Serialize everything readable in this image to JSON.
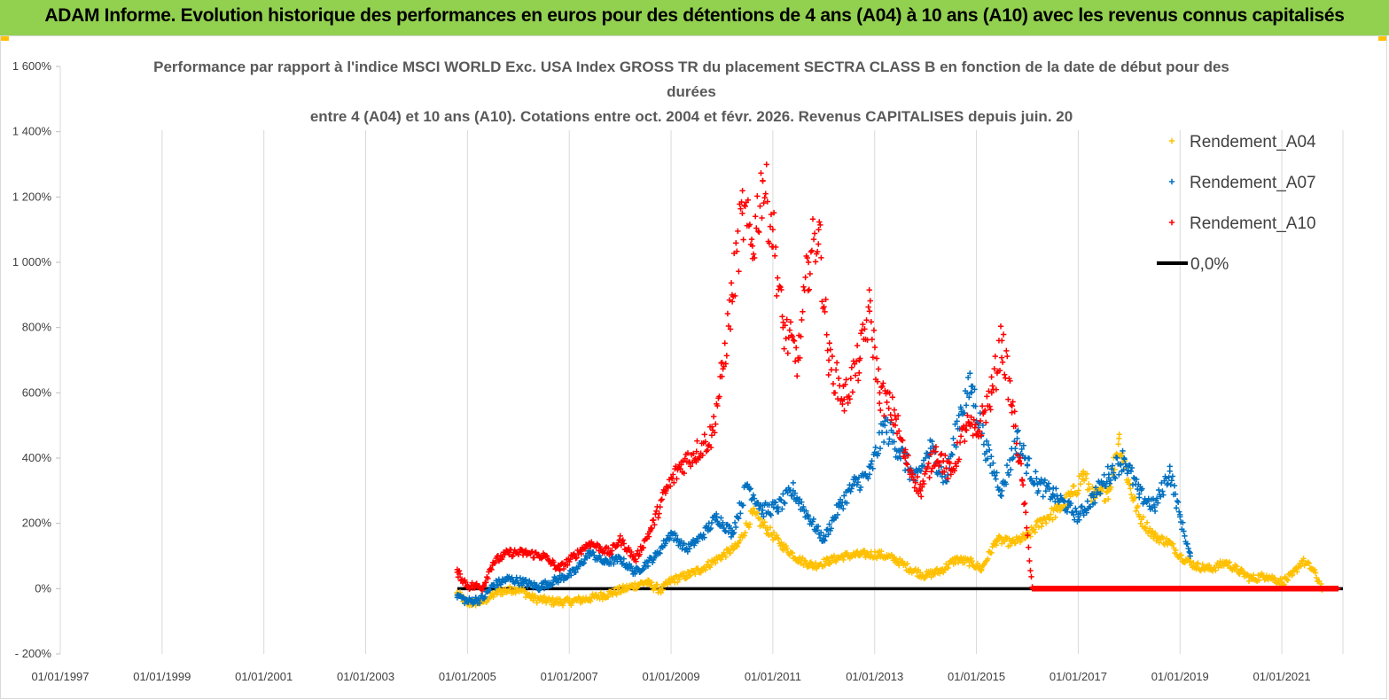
{
  "banner": {
    "title": "ADAM Informe. Evolution historique des performances en euros pour des détentions de 4 ans (A04) à 10 ans (A10) avec les revenus connus capitalisés",
    "color": "#92d050"
  },
  "chart_data": {
    "type": "scatter",
    "title_line1": "Performance par rapport à l'indice MSCI WORLD Exc. USA Index GROSS TR  du placement SECTRA CLASS B en fonction de la date de début pour des durées",
    "title_line2": "entre 4 (A04) et 10 ans (A10).  Cotations entre oct. 2004 et févr. 2026. Revenus CAPITALISES depuis juin. 20",
    "xlabel": "",
    "ylabel": "",
    "x_range": [
      1997.0,
      2022.2
    ],
    "ylim": [
      -200,
      1600
    ],
    "x_ticks": [
      1997,
      1999,
      2001,
      2003,
      2005,
      2007,
      2009,
      2011,
      2013,
      2015,
      2017,
      2019,
      2021
    ],
    "x_tick_labels": [
      "01/01/1997",
      "01/01/1999",
      "01/01/2001",
      "01/01/2003",
      "01/01/2005",
      "01/01/2007",
      "01/01/2009",
      "01/01/2011",
      "01/01/2013",
      "01/01/2015",
      "01/01/2017",
      "01/01/2019",
      "01/01/2021"
    ],
    "y_ticks": [
      -200,
      0,
      200,
      400,
      600,
      800,
      1000,
      1200,
      1400,
      1600
    ],
    "y_tick_labels": [
      "- 200%",
      "0%",
      "200%",
      "400%",
      "600%",
      "800%",
      "1 000%",
      "1 200%",
      "1 400%",
      "1 600%"
    ],
    "grid": "vertical",
    "legend_position": "top-right",
    "series": [
      {
        "name": "Rendement_A04",
        "color": "#ffc000",
        "marker": "+",
        "points": [
          [
            2004.8,
            -15
          ],
          [
            2005.0,
            -45
          ],
          [
            2005.3,
            -40
          ],
          [
            2005.6,
            -10
          ],
          [
            2006.0,
            0
          ],
          [
            2006.3,
            -30
          ],
          [
            2006.7,
            -40
          ],
          [
            2007.0,
            -40
          ],
          [
            2007.4,
            -30
          ],
          [
            2007.8,
            -15
          ],
          [
            2008.1,
            0
          ],
          [
            2008.5,
            20
          ],
          [
            2008.8,
            -5
          ],
          [
            2009.0,
            25
          ],
          [
            2009.3,
            40
          ],
          [
            2009.6,
            60
          ],
          [
            2010.0,
            100
          ],
          [
            2010.3,
            130
          ],
          [
            2010.6,
            230
          ],
          [
            2010.9,
            180
          ],
          [
            2011.2,
            130
          ],
          [
            2011.5,
            90
          ],
          [
            2011.8,
            70
          ],
          [
            2012.1,
            85
          ],
          [
            2012.4,
            100
          ],
          [
            2012.8,
            105
          ],
          [
            2013.1,
            105
          ],
          [
            2013.4,
            90
          ],
          [
            2013.7,
            60
          ],
          [
            2014.0,
            40
          ],
          [
            2014.3,
            55
          ],
          [
            2014.6,
            90
          ],
          [
            2014.9,
            80
          ],
          [
            2015.1,
            60
          ],
          [
            2015.4,
            150
          ],
          [
            2015.7,
            140
          ],
          [
            2016.0,
            160
          ],
          [
            2016.3,
            210
          ],
          [
            2016.6,
            240
          ],
          [
            2016.9,
            290
          ],
          [
            2017.1,
            350
          ],
          [
            2017.3,
            280
          ],
          [
            2017.6,
            300
          ],
          [
            2017.8,
            460
          ],
          [
            2018.0,
            320
          ],
          [
            2018.2,
            220
          ],
          [
            2018.5,
            160
          ],
          [
            2018.8,
            140
          ],
          [
            2019.0,
            100
          ],
          [
            2019.3,
            70
          ],
          [
            2019.6,
            60
          ],
          [
            2019.9,
            80
          ],
          [
            2020.1,
            60
          ],
          [
            2020.4,
            30
          ],
          [
            2020.7,
            40
          ],
          [
            2021.0,
            20
          ],
          [
            2021.2,
            40
          ],
          [
            2021.4,
            85
          ],
          [
            2021.6,
            60
          ],
          [
            2021.8,
            0
          ],
          [
            2022.1,
            0
          ]
        ]
      },
      {
        "name": "Rendement_A07",
        "color": "#0070c0",
        "marker": "+",
        "points": [
          [
            2004.8,
            -20
          ],
          [
            2005.0,
            -40
          ],
          [
            2005.3,
            -30
          ],
          [
            2005.5,
            10
          ],
          [
            2005.8,
            30
          ],
          [
            2006.1,
            20
          ],
          [
            2006.4,
            5
          ],
          [
            2006.8,
            30
          ],
          [
            2007.1,
            50
          ],
          [
            2007.4,
            110
          ],
          [
            2007.7,
            80
          ],
          [
            2008.0,
            90
          ],
          [
            2008.3,
            50
          ],
          [
            2008.7,
            100
          ],
          [
            2009.0,
            170
          ],
          [
            2009.3,
            120
          ],
          [
            2009.6,
            160
          ],
          [
            2009.9,
            220
          ],
          [
            2010.2,
            170
          ],
          [
            2010.5,
            320
          ],
          [
            2010.8,
            240
          ],
          [
            2011.1,
            250
          ],
          [
            2011.4,
            300
          ],
          [
            2011.7,
            220
          ],
          [
            2012.0,
            150
          ],
          [
            2012.3,
            250
          ],
          [
            2012.6,
            320
          ],
          [
            2012.9,
            350
          ],
          [
            2013.2,
            500
          ],
          [
            2013.5,
            420
          ],
          [
            2013.8,
            330
          ],
          [
            2014.1,
            430
          ],
          [
            2014.4,
            330
          ],
          [
            2014.7,
            550
          ],
          [
            2014.9,
            620
          ],
          [
            2015.2,
            420
          ],
          [
            2015.5,
            300
          ],
          [
            2015.8,
            460
          ],
          [
            2016.0,
            380
          ],
          [
            2016.2,
            320
          ],
          [
            2016.5,
            290
          ],
          [
            2016.8,
            250
          ],
          [
            2017.0,
            220
          ],
          [
            2017.3,
            280
          ],
          [
            2017.6,
            350
          ],
          [
            2017.9,
            400
          ],
          [
            2018.2,
            290
          ],
          [
            2018.5,
            250
          ],
          [
            2018.8,
            360
          ],
          [
            2019.0,
            220
          ],
          [
            2019.2,
            100
          ]
        ]
      },
      {
        "name": "Rendement_A10",
        "color": "#ff0000",
        "marker": "+",
        "points": [
          [
            2004.8,
            50
          ],
          [
            2005.0,
            10
          ],
          [
            2005.3,
            5
          ],
          [
            2005.5,
            80
          ],
          [
            2005.8,
            110
          ],
          [
            2006.1,
            110
          ],
          [
            2006.5,
            100
          ],
          [
            2006.8,
            60
          ],
          [
            2007.1,
            100
          ],
          [
            2007.4,
            140
          ],
          [
            2007.8,
            110
          ],
          [
            2008.0,
            150
          ],
          [
            2008.3,
            90
          ],
          [
            2008.6,
            180
          ],
          [
            2008.9,
            300
          ],
          [
            2009.2,
            380
          ],
          [
            2009.5,
            420
          ],
          [
            2009.8,
            470
          ],
          [
            2010.0,
            650
          ],
          [
            2010.2,
            900
          ],
          [
            2010.4,
            1150
          ],
          [
            2010.6,
            1050
          ],
          [
            2010.8,
            1250
          ],
          [
            2011.0,
            1100
          ],
          [
            2011.2,
            800
          ],
          [
            2011.5,
            700
          ],
          [
            2011.7,
            1000
          ],
          [
            2011.9,
            1100
          ],
          [
            2012.1,
            700
          ],
          [
            2012.4,
            580
          ],
          [
            2012.7,
            700
          ],
          [
            2012.9,
            850
          ],
          [
            2013.1,
            600
          ],
          [
            2013.4,
            530
          ],
          [
            2013.6,
            400
          ],
          [
            2013.9,
            300
          ],
          [
            2014.2,
            420
          ],
          [
            2014.5,
            350
          ],
          [
            2014.8,
            500
          ],
          [
            2015.0,
            470
          ],
          [
            2015.3,
            600
          ],
          [
            2015.5,
            760
          ],
          [
            2015.7,
            560
          ],
          [
            2015.9,
            330
          ],
          [
            2016.1,
            0
          ],
          [
            2017.0,
            0
          ],
          [
            2018.0,
            0
          ],
          [
            2019.0,
            0
          ],
          [
            2020.0,
            0
          ],
          [
            2021.0,
            0
          ],
          [
            2022.1,
            0
          ]
        ]
      },
      {
        "name": "0,0%",
        "color": "#000000",
        "marker": "line",
        "points": [
          [
            2004.8,
            0
          ],
          [
            2022.2,
            0
          ]
        ]
      }
    ]
  }
}
